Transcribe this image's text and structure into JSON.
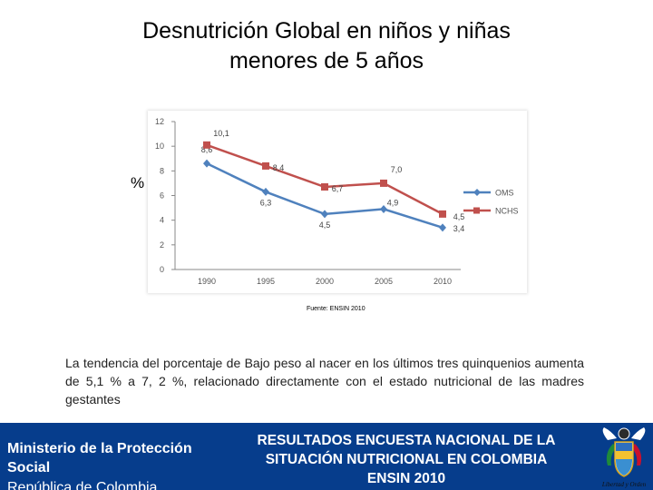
{
  "slide": {
    "title_line1": "Desnutrición Global en niños y niñas",
    "title_line2": "menores de 5 años",
    "y_unit_label": "%",
    "source": "Fuente: ENSIN 2010",
    "body_text": "La tendencia del porcentaje de Bajo peso al nacer en los últimos tres quinquenios aumenta de 5,1 % a 7, 2 %, relacionado directamente con el estado nutricional de las madres gestantes"
  },
  "footer": {
    "ministry": "Ministerio de la Protección Social",
    "republic": "República de Colombia",
    "survey_line1": "RESULTADOS ENCUESTA NACIONAL DE LA",
    "survey_line2": "SITUACIÓN NUTRICIONAL EN COLOMBIA",
    "survey_line3": "ENSIN  2010",
    "coat_caption": "Libertad y Orden",
    "background_color": "#063d8c"
  },
  "chart_data": {
    "type": "line",
    "title": "",
    "xlabel": "",
    "ylabel": "%",
    "categories": [
      "1990",
      "1995",
      "2000",
      "2005",
      "2010"
    ],
    "ylim": [
      0,
      12
    ],
    "yticks": [
      0,
      2,
      4,
      6,
      8,
      10,
      12
    ],
    "grid": false,
    "legend_position": "right",
    "series": [
      {
        "name": "OMS",
        "color": "#4f81bd",
        "marker": "diamond",
        "values": [
          8.6,
          6.3,
          4.5,
          4.9,
          3.4
        ],
        "labels": [
          "8,6",
          "6,3",
          "4,5",
          "4,9",
          "3,4"
        ]
      },
      {
        "name": "NCHS",
        "color": "#c0504d",
        "marker": "square",
        "values": [
          10.1,
          8.4,
          6.7,
          7.0,
          4.5
        ],
        "labels": [
          "10,1",
          "8,4",
          "6,7",
          "7,0",
          "4,5"
        ]
      }
    ]
  }
}
